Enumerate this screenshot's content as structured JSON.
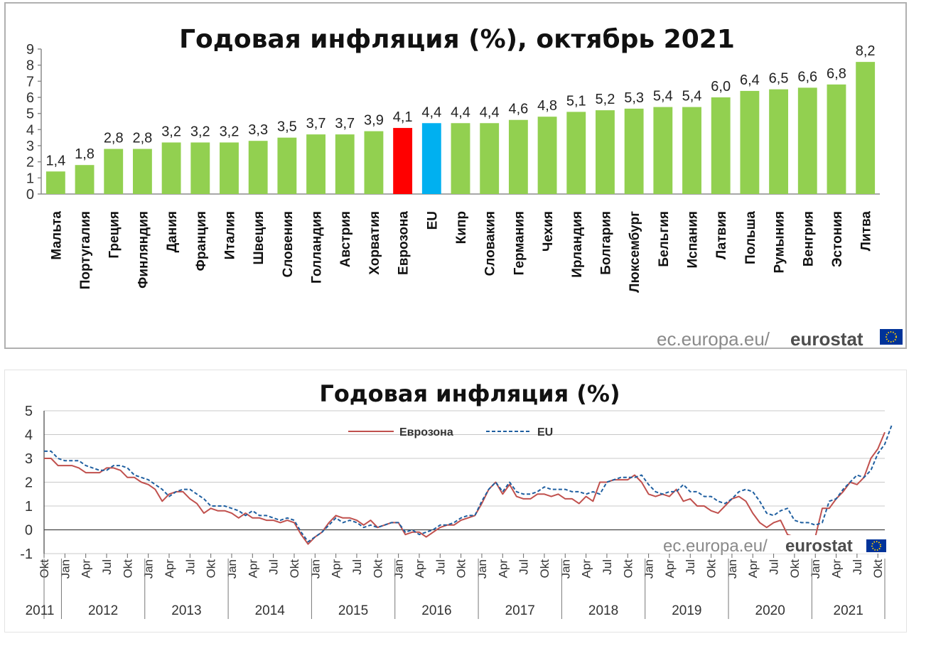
{
  "chart_data": [
    {
      "type": "bar",
      "title": "Годовая инфляция (%), октябрь 2021",
      "categories": [
        "Мальта",
        "Португалия",
        "Греция",
        "Финляндия",
        "Дания",
        "Франция",
        "Италия",
        "Швеция",
        "Словения",
        "Голландия",
        "Австрия",
        "Хорватия",
        "Еврозона",
        "EU",
        "Кипр",
        "Словакия",
        "Германия",
        "Чехия",
        "Ирландия",
        "Болгария",
        "Люксембург",
        "Бельгия",
        "Испания",
        "Латвия",
        "Польша",
        "Румыния",
        "Венгрия",
        "Эстония",
        "Литва"
      ],
      "values": [
        1.4,
        1.8,
        2.8,
        2.8,
        3.2,
        3.2,
        3.2,
        3.3,
        3.5,
        3.7,
        3.7,
        3.9,
        4.1,
        4.4,
        4.4,
        4.4,
        4.6,
        4.8,
        5.1,
        5.2,
        5.3,
        5.4,
        5.4,
        6.0,
        6.4,
        6.5,
        6.6,
        6.8,
        8.2
      ],
      "value_labels": [
        "1,4",
        "1,8",
        "2,8",
        "2,8",
        "3,2",
        "3,2",
        "3,2",
        "3,3",
        "3,5",
        "3,7",
        "3,7",
        "3,9",
        "4,1",
        "4,4",
        "4,4",
        "4,4",
        "4,6",
        "4,8",
        "5,1",
        "5,2",
        "5,3",
        "5,4",
        "5,4",
        "6,0",
        "6,4",
        "6,5",
        "6,6",
        "6,8",
        "8,2"
      ],
      "ylim": [
        0,
        9
      ],
      "yticks": [
        "0",
        "1",
        "2",
        "3",
        "4",
        "5",
        "6",
        "7",
        "8",
        "9"
      ],
      "colors": {
        "default": "#92d050",
        "Еврозона": "#ff0000",
        "EU": "#00b0f0"
      },
      "label_colors": {
        "default": "#111111",
        "Еврозона": "#c00000",
        "EU": "#00a0e0"
      },
      "grid": false
    },
    {
      "type": "line",
      "title": "Годовая инфляция (%)",
      "ylim": [
        -1,
        5
      ],
      "yticks": [
        "-1",
        "0",
        "1",
        "2",
        "3",
        "4",
        "5"
      ],
      "grid": true,
      "legend_position": "top-left",
      "x_start": "2011-10",
      "x_end": "2021-10",
      "month_labels": [
        "Okt",
        "Jan",
        "Apr",
        "Jul",
        "Okt",
        "Jan",
        "Apr",
        "Jul",
        "Okt",
        "Jan",
        "Apr",
        "Jul",
        "Okt",
        "Jan",
        "Apr",
        "Jul",
        "Okt",
        "Jan",
        "Apr",
        "Jul",
        "Okt",
        "Jan",
        "Apr",
        "Jul",
        "Okt",
        "Jan",
        "Apr",
        "Jul",
        "Okt",
        "Jan",
        "Apr",
        "Jul",
        "Okt",
        "Jan",
        "Apr",
        "Jul",
        "Okt",
        "Jan",
        "Apr",
        "Jul",
        "Okt"
      ],
      "year_labels": [
        "2011",
        "2012",
        "2013",
        "2014",
        "2015",
        "2016",
        "2017",
        "2018",
        "2019",
        "2020",
        "2021"
      ],
      "series": [
        {
          "name": "Еврозона",
          "color": "#c0504d",
          "dash": "solid",
          "legend_text_color": "#b8860b",
          "values": [
            3.0,
            3.0,
            2.7,
            2.7,
            2.7,
            2.6,
            2.4,
            2.4,
            2.4,
            2.6,
            2.6,
            2.5,
            2.2,
            2.2,
            2.0,
            1.9,
            1.7,
            1.2,
            1.5,
            1.6,
            1.6,
            1.3,
            1.1,
            0.7,
            0.9,
            0.8,
            0.8,
            0.7,
            0.5,
            0.7,
            0.5,
            0.5,
            0.4,
            0.4,
            0.3,
            0.4,
            0.3,
            -0.2,
            -0.6,
            -0.3,
            -0.1,
            0.3,
            0.6,
            0.5,
            0.5,
            0.4,
            0.2,
            0.4,
            0.1,
            0.2,
            0.3,
            0.3,
            -0.2,
            -0.1,
            -0.1,
            -0.3,
            -0.1,
            0.1,
            0.2,
            0.2,
            0.4,
            0.5,
            0.6,
            1.1,
            1.7,
            2.0,
            1.5,
            1.9,
            1.4,
            1.3,
            1.3,
            1.5,
            1.5,
            1.4,
            1.5,
            1.3,
            1.3,
            1.1,
            1.4,
            1.2,
            2.0,
            2.0,
            2.1,
            2.1,
            2.1,
            2.3,
            2.0,
            1.5,
            1.4,
            1.5,
            1.4,
            1.7,
            1.2,
            1.3,
            1.0,
            1.0,
            0.8,
            0.7,
            1.0,
            1.3,
            1.4,
            1.2,
            0.7,
            0.3,
            0.1,
            0.3,
            0.4,
            -0.2,
            -0.3,
            -0.3,
            -0.3,
            -0.3,
            0.9,
            0.9,
            1.3,
            1.6,
            2.0,
            1.9,
            2.2,
            3.0,
            3.4,
            4.1
          ]
        },
        {
          "name": "EU",
          "color": "#1f5fa0",
          "dash": "dashed",
          "legend_text_color": "#3b3b9c",
          "values": [
            3.3,
            3.3,
            3.0,
            2.9,
            2.9,
            2.9,
            2.7,
            2.6,
            2.5,
            2.5,
            2.7,
            2.7,
            2.6,
            2.3,
            2.2,
            2.1,
            1.9,
            1.7,
            1.4,
            1.6,
            1.7,
            1.7,
            1.5,
            1.3,
            1.0,
            1.0,
            1.0,
            0.9,
            0.8,
            0.6,
            0.8,
            0.6,
            0.6,
            0.5,
            0.4,
            0.5,
            0.4,
            -0.1,
            -0.5,
            -0.3,
            -0.1,
            0.2,
            0.5,
            0.3,
            0.4,
            0.3,
            0.1,
            0.2,
            0.1,
            0.2,
            0.3,
            0.3,
            -0.1,
            0.0,
            -0.2,
            -0.1,
            0.0,
            0.2,
            0.2,
            0.3,
            0.5,
            0.6,
            0.6,
            1.2,
            1.7,
            2.0,
            1.6,
            2.0,
            1.6,
            1.5,
            1.5,
            1.6,
            1.8,
            1.7,
            1.7,
            1.7,
            1.6,
            1.6,
            1.5,
            1.6,
            1.5,
            2.0,
            2.1,
            2.2,
            2.2,
            2.2,
            2.3,
            1.9,
            1.6,
            1.5,
            1.6,
            1.6,
            1.9,
            1.6,
            1.6,
            1.4,
            1.4,
            1.2,
            1.1,
            1.3,
            1.6,
            1.7,
            1.6,
            1.2,
            0.7,
            0.6,
            0.8,
            0.9,
            0.4,
            0.3,
            0.3,
            0.2,
            0.3,
            1.2,
            1.3,
            1.7,
            2.0,
            2.3,
            2.2,
            2.5,
            3.2,
            3.6,
            4.4
          ]
        }
      ]
    }
  ],
  "watermark": {
    "domain": "ec.europa.eu/",
    "brand": "eurostat"
  }
}
